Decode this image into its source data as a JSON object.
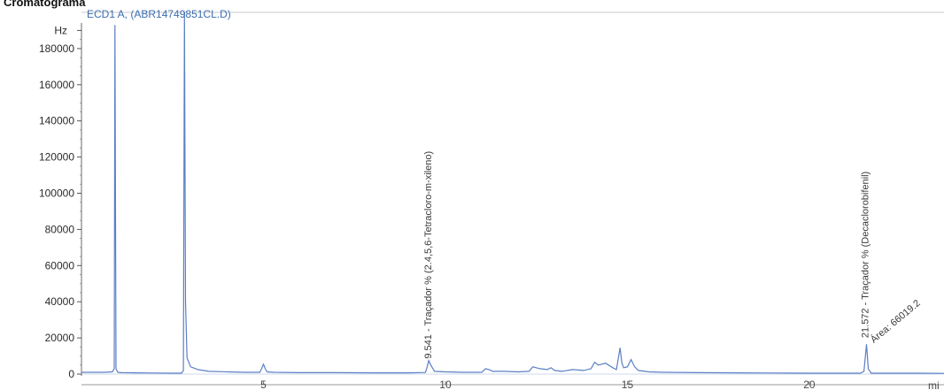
{
  "page": {
    "title": "Cromatograma"
  },
  "chart_data": {
    "type": "line",
    "legend": "ECD1 A,  (ABR14749851CL.D)",
    "ylabel": "Hz",
    "xlabel": "mi",
    "xlim": [
      0,
      23.7
    ],
    "ylim": [
      0,
      200000
    ],
    "xticks": [
      5,
      10,
      15,
      20
    ],
    "yticks": [
      0,
      20000,
      40000,
      60000,
      80000,
      100000,
      120000,
      140000,
      160000,
      180000
    ],
    "series": [
      {
        "color": "#5b7fc4",
        "x": [
          0,
          0.6,
          0.85,
          0.9,
          0.92,
          0.95,
          1.0,
          1.1,
          1.5,
          2.0,
          2.5,
          2.75,
          2.8,
          2.83,
          2.86,
          2.9,
          3.0,
          3.2,
          3.5,
          4.0,
          4.5,
          4.9,
          4.95,
          5.0,
          5.05,
          5.1,
          5.3,
          6.0,
          7.0,
          8.0,
          9.0,
          9.45,
          9.5,
          9.54,
          9.6,
          9.7,
          10.0,
          10.5,
          11.0,
          11.1,
          11.2,
          11.3,
          11.6,
          12.0,
          12.3,
          12.4,
          12.6,
          12.8,
          12.9,
          13.0,
          13.2,
          13.5,
          13.8,
          14.0,
          14.1,
          14.2,
          14.4,
          14.6,
          14.7,
          14.8,
          14.85,
          14.9,
          15.0,
          15.1,
          15.2,
          15.3,
          15.6,
          16.0,
          17.0,
          18.0,
          19.0,
          20.0,
          21.0,
          21.4,
          21.5,
          21.57,
          21.62,
          21.7,
          22.0,
          23.0,
          23.7
        ],
        "y": [
          1000,
          1000,
          1200,
          3000,
          193000,
          3000,
          1000,
          800,
          700,
          600,
          500,
          500,
          2000,
          200000,
          40000,
          9000,
          4000,
          2500,
          1500,
          1200,
          1000,
          1000,
          3000,
          5500,
          3000,
          1200,
          1000,
          800,
          800,
          700,
          700,
          900,
          4000,
          7500,
          5000,
          1500,
          1200,
          1000,
          1000,
          3000,
          2500,
          1500,
          1500,
          1200,
          1500,
          4000,
          3000,
          2500,
          3500,
          2000,
          1500,
          2500,
          2000,
          3000,
          6500,
          5000,
          6000,
          3500,
          2500,
          14500,
          6000,
          3500,
          4000,
          8000,
          4000,
          2000,
          1200,
          1000,
          800,
          700,
          600,
          500,
          500,
          500,
          1500,
          16500,
          3000,
          500,
          500,
          500,
          400
        ]
      }
    ],
    "annotations": [
      {
        "label": "9.541 -  Traçador % (2.4,5,6-Tetracloro-m-xileno)",
        "x": 9.541
      },
      {
        "label": "21.572 -  Traçador % (Decaclorobifenil)",
        "x": 21.572
      },
      {
        "label": "Área: 66019.2",
        "x": 21.7
      }
    ]
  }
}
